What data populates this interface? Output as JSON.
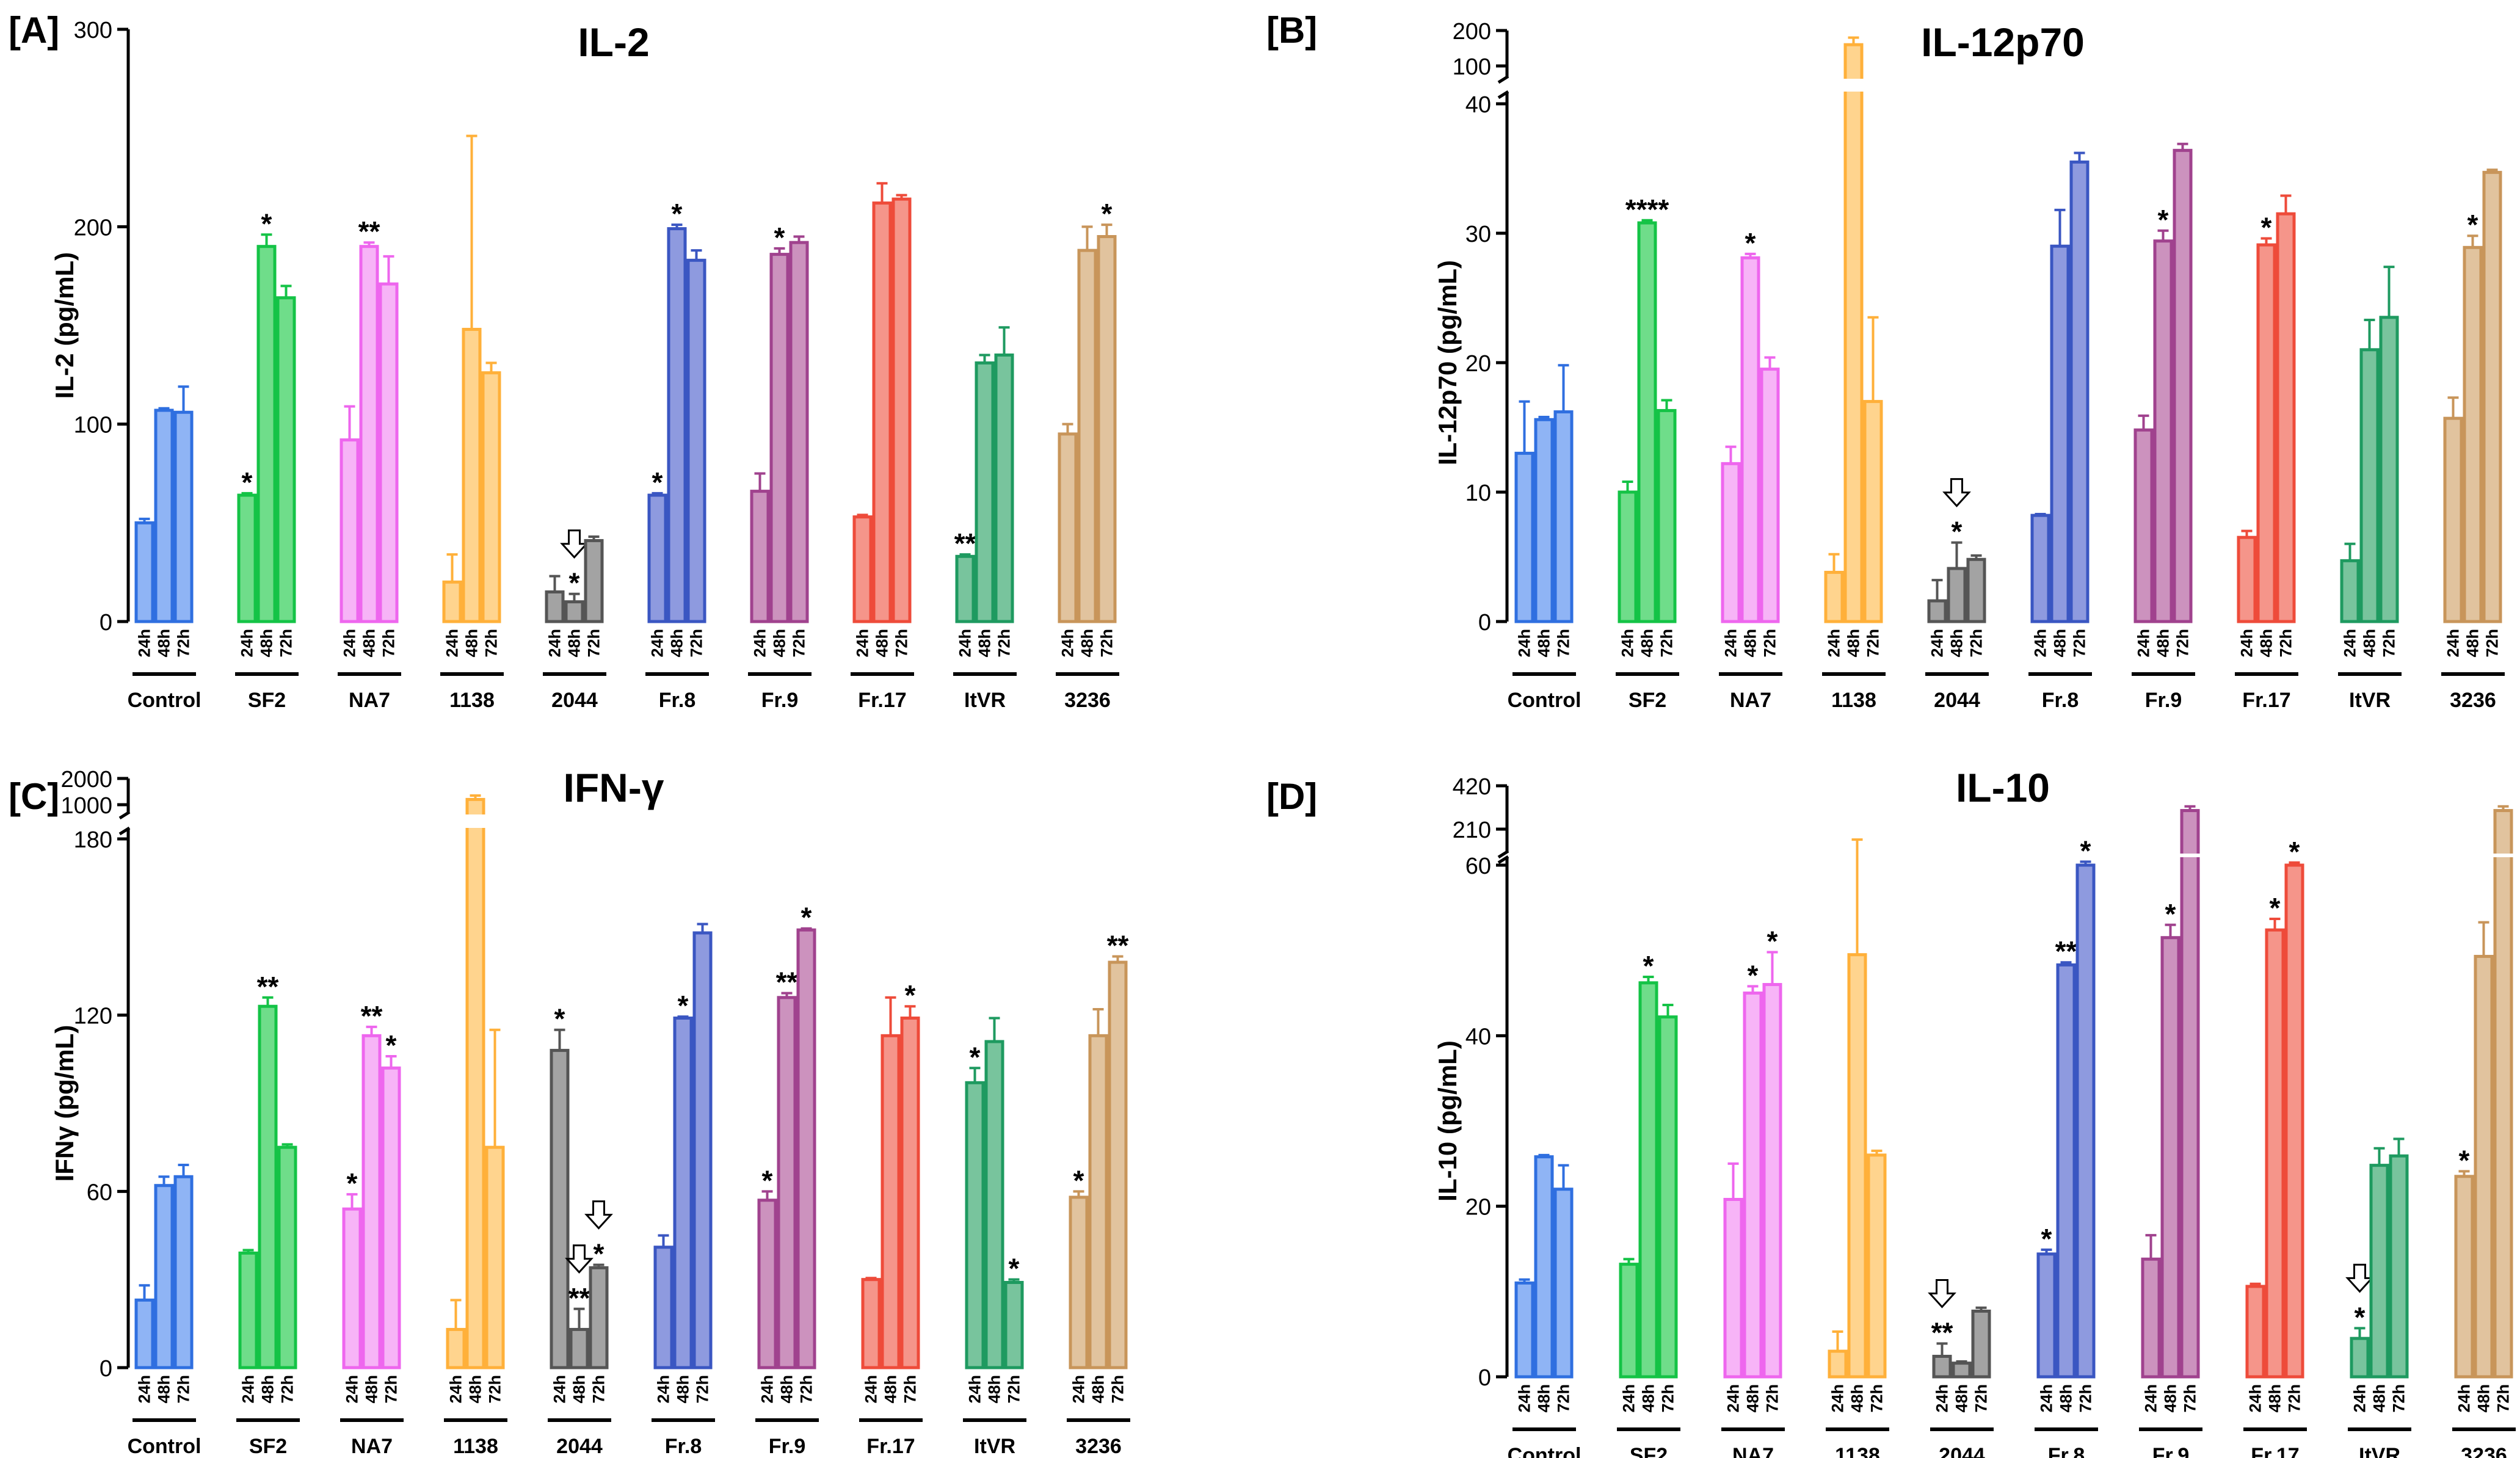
{
  "figure": {
    "time_labels": [
      "24h",
      "48h",
      "72h"
    ],
    "groups": [
      "Control",
      "SF2",
      "NA7",
      "1138",
      "2044",
      "Fr.8",
      "Fr.9",
      "Fr.17",
      "ItVR",
      "3236"
    ],
    "group_colors": [
      "#2F6FE0",
      "#14C346",
      "#EE66EE",
      "#FFB03A",
      "#555555",
      "#3A56C2",
      "#A0428E",
      "#EE4B3A",
      "#1E9A60",
      "#C8955A"
    ],
    "group_fills": [
      "#8FB4F5",
      "#6FDD8A",
      "#F7B4F7",
      "#FFD48E",
      "#A3A3A3",
      "#8E9ADF",
      "#CC92BE",
      "#F5958A",
      "#78C49D",
      "#E1C39E"
    ]
  },
  "chart_data": [
    {
      "panel": "[A]",
      "title": "IL-2",
      "type": "bar",
      "ylabel": "IL-2 (pg/mL)",
      "ylim": [
        0,
        300
      ],
      "yticks": [
        "0",
        "100",
        "200",
        "300"
      ],
      "break": null,
      "series": [
        {
          "group": "Control",
          "values": [
            50,
            107,
            106
          ],
          "errors": [
            2,
            1,
            13
          ],
          "marks": [
            "",
            "",
            ""
          ],
          "arrows": [
            false,
            false,
            false
          ]
        },
        {
          "group": "SF2",
          "values": [
            64,
            190,
            164
          ],
          "errors": [
            1,
            6,
            6
          ],
          "marks": [
            "*",
            "*",
            ""
          ],
          "arrows": [
            false,
            false,
            false
          ]
        },
        {
          "group": "NA7",
          "values": [
            92,
            190,
            171
          ],
          "errors": [
            17,
            2,
            14
          ],
          "marks": [
            "",
            "**",
            ""
          ],
          "arrows": [
            false,
            false,
            false
          ]
        },
        {
          "group": "1138",
          "values": [
            20,
            148,
            126
          ],
          "errors": [
            14,
            98,
            5
          ],
          "marks": [
            "",
            "",
            ""
          ],
          "arrows": [
            false,
            false,
            false
          ]
        },
        {
          "group": "2044",
          "values": [
            15,
            10,
            41
          ],
          "errors": [
            8,
            4,
            2
          ],
          "marks": [
            "",
            "*",
            ""
          ],
          "arrows": [
            false,
            true,
            false
          ]
        },
        {
          "group": "Fr.8",
          "values": [
            64,
            199,
            183
          ],
          "errors": [
            1,
            2,
            5
          ],
          "marks": [
            "*",
            "*",
            ""
          ],
          "arrows": [
            false,
            false,
            false
          ]
        },
        {
          "group": "Fr.9",
          "values": [
            66,
            186,
            192
          ],
          "errors": [
            9,
            3,
            3
          ],
          "marks": [
            "",
            "*",
            ""
          ],
          "arrows": [
            false,
            false,
            false
          ]
        },
        {
          "group": "Fr.17",
          "values": [
            53,
            212,
            214
          ],
          "errors": [
            1,
            10,
            2
          ],
          "marks": [
            "",
            "",
            ""
          ],
          "arrows": [
            false,
            false,
            false
          ]
        },
        {
          "group": "ItVR",
          "values": [
            33,
            131,
            135
          ],
          "errors": [
            1,
            4,
            14
          ],
          "marks": [
            "**",
            "",
            ""
          ],
          "arrows": [
            false,
            false,
            false
          ]
        },
        {
          "group": "3236",
          "values": [
            95,
            188,
            195
          ],
          "errors": [
            5,
            12,
            6
          ],
          "marks": [
            "",
            "",
            "*"
          ],
          "arrows": [
            false,
            false,
            false
          ]
        }
      ]
    },
    {
      "panel": "[B]",
      "title": "IL-12p70",
      "type": "bar",
      "ylabel": "IL-12p70 (pg/mL)",
      "ylim": [
        0,
        40
      ],
      "yticks": [
        "0",
        "10",
        "20",
        "30",
        "40"
      ],
      "break": {
        "top_range": [
          100,
          200
        ],
        "top_ticks": [
          "100",
          "200"
        ]
      },
      "series": [
        {
          "group": "Control",
          "values": [
            13,
            15.6,
            16.2
          ],
          "errors": [
            4,
            0.2,
            3.6
          ],
          "marks": [
            "",
            "",
            ""
          ],
          "arrows": [
            false,
            false,
            false
          ]
        },
        {
          "group": "SF2",
          "values": [
            10,
            30.8,
            16.3
          ],
          "errors": [
            0.8,
            0.2,
            0.8
          ],
          "marks": [
            "",
            "****",
            ""
          ],
          "arrows": [
            false,
            false,
            false
          ]
        },
        {
          "group": "NA7",
          "values": [
            12.2,
            28.1,
            19.5
          ],
          "errors": [
            1.3,
            0.3,
            0.9
          ],
          "marks": [
            "",
            "*",
            ""
          ],
          "arrows": [
            false,
            false,
            false
          ]
        },
        {
          "group": "1138",
          "values": [
            3.8,
            160,
            17
          ],
          "errors": [
            1.4,
            20,
            6.5
          ],
          "marks": [
            "",
            "",
            ""
          ],
          "arrows": [
            false,
            false,
            false
          ]
        },
        {
          "group": "2044",
          "values": [
            1.6,
            4.1,
            4.8
          ],
          "errors": [
            1.6,
            2.0,
            0.3
          ],
          "marks": [
            "",
            "*",
            ""
          ],
          "arrows": [
            false,
            true,
            false
          ]
        },
        {
          "group": "Fr.8",
          "values": [
            8.2,
            29,
            35.5
          ],
          "errors": [
            0.1,
            2.8,
            0.7
          ],
          "marks": [
            "",
            "",
            ""
          ],
          "arrows": [
            false,
            false,
            false
          ]
        },
        {
          "group": "Fr.9",
          "values": [
            14.8,
            29.4,
            36.4
          ],
          "errors": [
            1.1,
            0.8,
            0.5
          ],
          "marks": [
            "",
            "*",
            ""
          ],
          "arrows": [
            false,
            false,
            false
          ]
        },
        {
          "group": "Fr.17",
          "values": [
            6.5,
            29.1,
            31.5
          ],
          "errors": [
            0.5,
            0.5,
            1.4
          ],
          "marks": [
            "",
            "*",
            ""
          ],
          "arrows": [
            false,
            false,
            false
          ]
        },
        {
          "group": "ItVR",
          "values": [
            4.7,
            21,
            23.5
          ],
          "errors": [
            1.3,
            2.3,
            3.9
          ],
          "marks": [
            "",
            "",
            ""
          ],
          "arrows": [
            false,
            false,
            false
          ]
        },
        {
          "group": "3236",
          "values": [
            15.7,
            28.9,
            34.7
          ],
          "errors": [
            1.6,
            0.9,
            0.2
          ],
          "marks": [
            "",
            "*",
            ""
          ],
          "arrows": [
            false,
            false,
            false
          ]
        }
      ]
    },
    {
      "panel": "[C]",
      "title": "IFN-γ",
      "type": "bar",
      "ylabel": "IFNγ (pg/mL)",
      "ylim": [
        0,
        180
      ],
      "yticks": [
        "0",
        "60",
        "120",
        "180"
      ],
      "break": {
        "top_range": [
          1000,
          2000
        ],
        "top_ticks": [
          "1000",
          "2000"
        ]
      },
      "series": [
        {
          "group": "Control",
          "values": [
            23,
            62,
            65
          ],
          "errors": [
            5,
            3,
            4
          ],
          "marks": [
            "",
            "",
            ""
          ],
          "arrows": [
            false,
            false,
            false
          ]
        },
        {
          "group": "SF2",
          "values": [
            39,
            123,
            75
          ],
          "errors": [
            1,
            3,
            1
          ],
          "marks": [
            "",
            "**",
            ""
          ],
          "arrows": [
            false,
            false,
            false
          ]
        },
        {
          "group": "NA7",
          "values": [
            54,
            113,
            102
          ],
          "errors": [
            5,
            3,
            4
          ],
          "marks": [
            "*",
            "**",
            "*"
          ],
          "arrows": [
            false,
            false,
            false
          ]
        },
        {
          "group": "1138",
          "values": [
            13,
            1200,
            75
          ],
          "errors": [
            10,
            150,
            40
          ],
          "marks": [
            "",
            "",
            ""
          ],
          "arrows": [
            false,
            false,
            false
          ]
        },
        {
          "group": "2044",
          "values": [
            108,
            13,
            34
          ],
          "errors": [
            7,
            7,
            1
          ],
          "marks": [
            "*",
            "**",
            "*"
          ],
          "arrows": [
            false,
            true,
            true
          ]
        },
        {
          "group": "Fr.8",
          "values": [
            41,
            119,
            148
          ],
          "errors": [
            4,
            0.5,
            3
          ],
          "marks": [
            "",
            "*",
            ""
          ],
          "arrows": [
            false,
            false,
            false
          ]
        },
        {
          "group": "Fr.9",
          "values": [
            57,
            126,
            149
          ],
          "errors": [
            3,
            1.5,
            0.5
          ],
          "marks": [
            "*",
            "**",
            "*"
          ],
          "arrows": [
            false,
            false,
            false
          ]
        },
        {
          "group": "Fr.17",
          "values": [
            30,
            113,
            119
          ],
          "errors": [
            0.5,
            13,
            4
          ],
          "marks": [
            "",
            "",
            "*"
          ],
          "arrows": [
            false,
            false,
            false
          ]
        },
        {
          "group": "ItVR",
          "values": [
            97,
            111,
            29
          ],
          "errors": [
            5,
            8,
            1
          ],
          "marks": [
            "*",
            "",
            "*"
          ],
          "arrows": [
            false,
            false,
            false
          ]
        },
        {
          "group": "3236",
          "values": [
            58,
            113,
            138
          ],
          "errors": [
            2,
            9,
            2
          ],
          "marks": [
            "*",
            "",
            "**"
          ],
          "arrows": [
            false,
            false,
            false
          ]
        }
      ]
    },
    {
      "panel": "[D]",
      "title": "IL-10",
      "type": "bar",
      "ylabel": "IL-10 (pg/mL)",
      "ylim": [
        0,
        60
      ],
      "yticks": [
        "0",
        "20",
        "40",
        "60"
      ],
      "break": {
        "top_range": [
          210,
          420
        ],
        "top_ticks": [
          "210",
          "420"
        ]
      },
      "series": [
        {
          "group": "Control",
          "values": [
            11,
            25.8,
            22
          ],
          "errors": [
            0.4,
            0.2,
            2.8
          ],
          "marks": [
            "",
            "",
            ""
          ],
          "arrows": [
            false,
            false,
            false
          ]
        },
        {
          "group": "SF2",
          "values": [
            13.2,
            46.2,
            42.2
          ],
          "errors": [
            0.6,
            0.7,
            1.4
          ],
          "marks": [
            "",
            "*",
            ""
          ],
          "arrows": [
            false,
            false,
            false
          ]
        },
        {
          "group": "NA7",
          "values": [
            20.8,
            45,
            46
          ],
          "errors": [
            4.2,
            0.8,
            3.8
          ],
          "marks": [
            "",
            "*",
            "*"
          ],
          "arrows": [
            false,
            false,
            false
          ]
        },
        {
          "group": "1138",
          "values": [
            3,
            49.5,
            26
          ],
          "errors": [
            2.3,
            13.5,
            0.5
          ],
          "marks": [
            "",
            "",
            ""
          ],
          "arrows": [
            false,
            false,
            false
          ]
        },
        {
          "group": "2044",
          "values": [
            2.4,
            1.6,
            7.7
          ],
          "errors": [
            1.5,
            0.2,
            0.4
          ],
          "marks": [
            "**",
            "",
            ""
          ],
          "arrows": [
            true,
            false,
            false
          ]
        },
        {
          "group": "Fr.8",
          "values": [
            14.4,
            48.3,
            60
          ],
          "errors": [
            0.5,
            0.3,
            0.4
          ],
          "marks": [
            "*",
            "**",
            "*"
          ],
          "arrows": [
            false,
            false,
            false
          ]
        },
        {
          "group": "Fr.9",
          "values": [
            13.8,
            51.5,
            300
          ],
          "errors": [
            2.8,
            1.5,
            20
          ],
          "marks": [
            "",
            "*",
            ""
          ],
          "arrows": [
            false,
            false,
            false
          ]
        },
        {
          "group": "Fr.17",
          "values": [
            10.6,
            52.4,
            60
          ],
          "errors": [
            0.3,
            1.3,
            0.3
          ],
          "marks": [
            "",
            "*",
            "*"
          ],
          "arrows": [
            false,
            false,
            false
          ]
        },
        {
          "group": "ItVR",
          "values": [
            4.5,
            24.8,
            25.9
          ],
          "errors": [
            1.2,
            2.0,
            2.0
          ],
          "marks": [
            "*",
            "",
            ""
          ],
          "arrows": [
            true,
            false,
            false
          ]
        },
        {
          "group": "3236",
          "values": [
            23.5,
            49.3,
            300
          ],
          "errors": [
            0.6,
            4.0,
            20
          ],
          "marks": [
            "*",
            "",
            ""
          ],
          "arrows": [
            false,
            false,
            false
          ]
        }
      ]
    }
  ]
}
